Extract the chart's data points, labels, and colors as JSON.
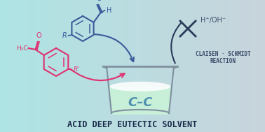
{
  "bg_left_color": "#aee4e4",
  "bg_right_color": "#c8d4dc",
  "title": "ACID DEEP EUTECTIC SOLVENT",
  "title_color": "#1a2a4a",
  "title_fontsize": 8.5,
  "claisen_text1": "CLAISEN · SCHMIDT",
  "claisen_text2": "REACTION",
  "claisen_color": "#3a4a6a",
  "claisen_fontsize": 5.5,
  "hplus_text": "H⁺/OH⁻",
  "hplus_color": "#3a4a6a",
  "beaker_liquid_color": "#c8f0d8",
  "beaker_outline_color": "#8090a0",
  "cc_color": "#5090b0",
  "benzaldehyde_color": "#3a5a9a",
  "acetophenone_color": "#e03070",
  "arrow_blue_color": "#3a5a9a",
  "arrow_pink_color": "#e03070",
  "cross_color": "#2a3a5a"
}
